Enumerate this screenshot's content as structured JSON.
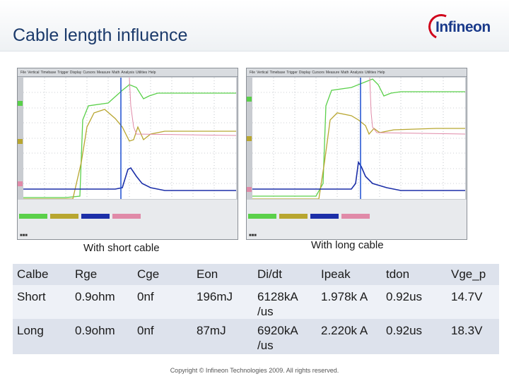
{
  "slide": {
    "title": "Cable length influence",
    "logo_text": "Infineon"
  },
  "scopes": [
    {
      "caption": "With short cable",
      "menu": [
        "File",
        "Vertical",
        "Timebase",
        "Trigger",
        "Display",
        "Cursors",
        "Measure",
        "Math",
        "Analysis",
        "Utilities",
        "Help"
      ]
    },
    {
      "caption": "With long cable",
      "menu": [
        "File",
        "Vertical",
        "Timebase",
        "Trigger",
        "Display",
        "Cursors",
        "Measure",
        "Math",
        "Analysis",
        "Utilities",
        "Help"
      ]
    }
  ],
  "table": {
    "headers": [
      "Calbe",
      "Rge",
      "Cge",
      "Eon",
      "Di/dt",
      "Ipeak",
      "tdon",
      "Vge_p"
    ],
    "rows": [
      [
        "Short",
        "0.9ohm",
        "0nf",
        "196mJ",
        "6128kA /us",
        "1.978k A",
        "0.92us",
        "14.7V"
      ],
      [
        "Long",
        "0.9ohm",
        "0nf",
        "87mJ",
        "6920kA /us",
        "2.220k A",
        "0.92us",
        "18.3V"
      ]
    ]
  },
  "footer": "Copyright © Infineon Technologies 2009. All rights reserved.",
  "colors": {
    "title": "#1b3a6b",
    "green": "#5ad04a",
    "olive": "#b8a630",
    "pink": "#e08aa8",
    "blue": "#1c2fa8",
    "cursor": "#1b4fd0"
  }
}
